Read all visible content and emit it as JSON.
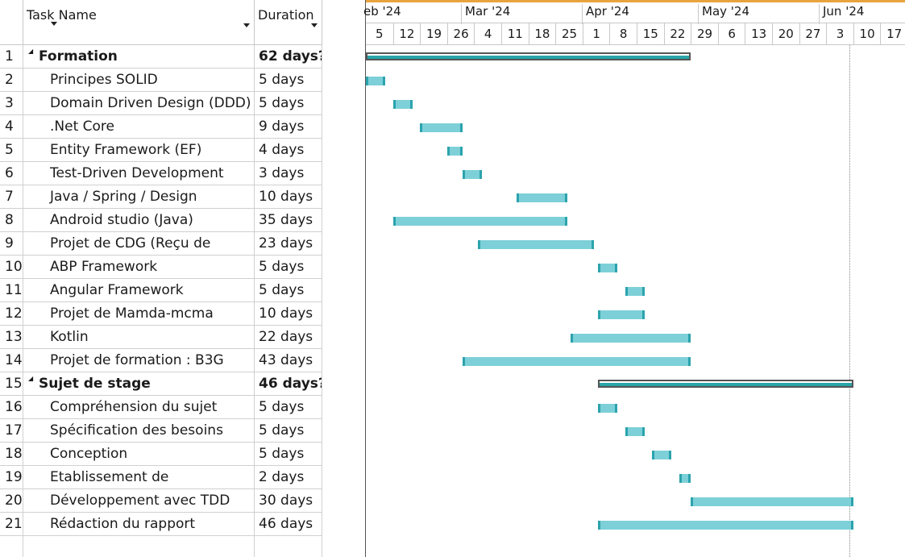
{
  "grid": {
    "headers": {
      "task_name": "Task Name",
      "duration": "Duration"
    },
    "rows": [
      {
        "id": "1",
        "name": "Formation",
        "duration": "62 days?",
        "summary": true
      },
      {
        "id": "2",
        "name": "Principes SOLID",
        "duration": "5 days"
      },
      {
        "id": "3",
        "name": "Domain Driven Design (DDD)",
        "duration": "5 days"
      },
      {
        "id": "4",
        "name": ".Net Core",
        "duration": "9 days"
      },
      {
        "id": "5",
        "name": "Entity Framework (EF)",
        "duration": "4 days"
      },
      {
        "id": "6",
        "name": "Test-Driven Development",
        "duration": "3 days"
      },
      {
        "id": "7",
        "name": "Java / Spring / Design",
        "duration": "10 days"
      },
      {
        "id": "8",
        "name": "Android studio (Java)",
        "duration": "35 days"
      },
      {
        "id": "9",
        "name": "Projet de  CDG (Reçu de",
        "duration": "23 days"
      },
      {
        "id": "10",
        "name": "ABP Framework",
        "duration": "5 days"
      },
      {
        "id": "11",
        "name": "Angular Framework",
        "duration": "5 days"
      },
      {
        "id": "12",
        "name": "Projet de Mamda-mcma",
        "duration": "10 days"
      },
      {
        "id": "13",
        "name": "Kotlin",
        "duration": "22 days"
      },
      {
        "id": "14",
        "name": "Projet de formation : B3G",
        "duration": "43 days"
      },
      {
        "id": "15",
        "name": "Sujet de stage",
        "duration": "46 days?",
        "summary": true
      },
      {
        "id": "16",
        "name": "Compréhension du sujet",
        "duration": "5 days"
      },
      {
        "id": "17",
        "name": "Spécification des besoins",
        "duration": "5 days"
      },
      {
        "id": "18",
        "name": "Conception",
        "duration": "5 days"
      },
      {
        "id": "19",
        "name": "Etablissement de",
        "duration": "2 days"
      },
      {
        "id": "20",
        "name": "Développement avec TDD",
        "duration": "30 days"
      },
      {
        "id": "21",
        "name": "Rédaction du rapport",
        "duration": "46 days"
      }
    ]
  },
  "timescale": {
    "months": [
      "eb '24",
      "Mar '24",
      "Apr '24",
      "May '24",
      "Jun '24"
    ],
    "weeks": [
      "5",
      "12",
      "19",
      "26",
      "4",
      "11",
      "18",
      "25",
      "1",
      "8",
      "15",
      "22",
      "29",
      "6",
      "13",
      "20",
      "27",
      "3",
      "10",
      "17"
    ]
  },
  "bars": [
    {
      "row": 1,
      "start": "2024-02-05",
      "end": "2024-04-29",
      "summary": true
    },
    {
      "row": 2,
      "start": "2024-02-05",
      "end": "2024-02-10"
    },
    {
      "row": 3,
      "start": "2024-02-12",
      "end": "2024-02-17"
    },
    {
      "row": 4,
      "start": "2024-02-19",
      "end": "2024-03-01"
    },
    {
      "row": 5,
      "start": "2024-02-26",
      "end": "2024-03-01"
    },
    {
      "row": 6,
      "start": "2024-03-01",
      "end": "2024-03-06"
    },
    {
      "row": 7,
      "start": "2024-03-15",
      "end": "2024-03-28"
    },
    {
      "row": 8,
      "start": "2024-02-12",
      "end": "2024-03-28"
    },
    {
      "row": 9,
      "start": "2024-03-05",
      "end": "2024-04-04"
    },
    {
      "row": 10,
      "start": "2024-04-05",
      "end": "2024-04-10"
    },
    {
      "row": 11,
      "start": "2024-04-12",
      "end": "2024-04-17"
    },
    {
      "row": 12,
      "start": "2024-04-05",
      "end": "2024-04-17"
    },
    {
      "row": 13,
      "start": "2024-03-29",
      "end": "2024-04-29"
    },
    {
      "row": 14,
      "start": "2024-03-01",
      "end": "2024-04-29"
    },
    {
      "row": 15,
      "start": "2024-04-05",
      "end": "2024-06-10",
      "summary": true
    },
    {
      "row": 16,
      "start": "2024-04-05",
      "end": "2024-04-10"
    },
    {
      "row": 17,
      "start": "2024-04-12",
      "end": "2024-04-17"
    },
    {
      "row": 18,
      "start": "2024-04-19",
      "end": "2024-04-24"
    },
    {
      "row": 19,
      "start": "2024-04-26",
      "end": "2024-04-29"
    },
    {
      "row": 20,
      "start": "2024-04-29",
      "end": "2024-06-10"
    },
    {
      "row": 21,
      "start": "2024-04-05",
      "end": "2024-06-10"
    }
  ],
  "status_date": "2024-06-09"
}
